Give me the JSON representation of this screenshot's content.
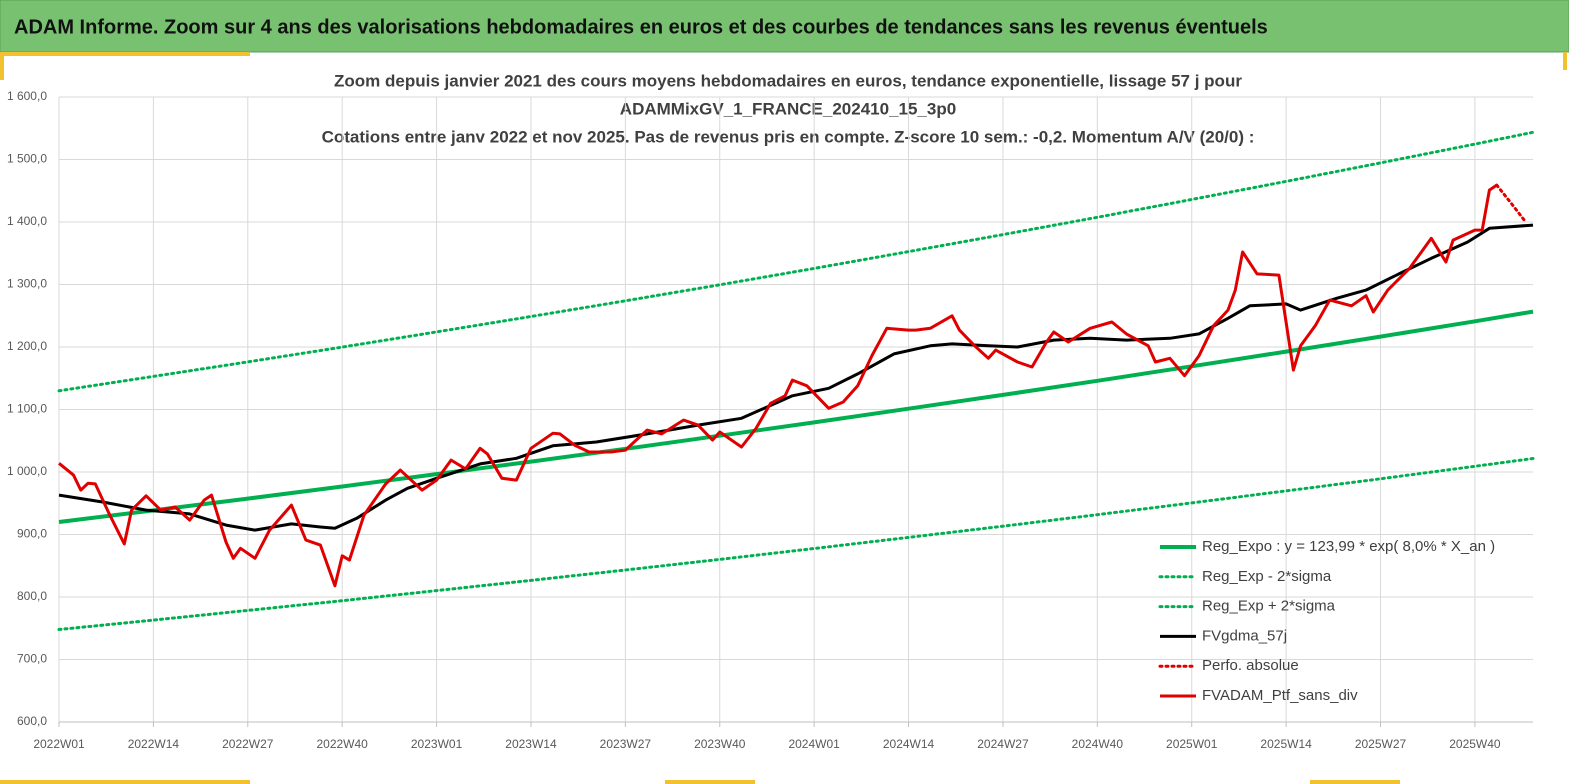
{
  "header": {
    "title": "ADAM Informe. Zoom sur 4 ans des valorisations hebdomadaires en euros et des courbes de tendances sans les revenus éventuels"
  },
  "chart_data": {
    "type": "line",
    "title": [
      "Zoom depuis janvier 2021 des cours moyens hebdomadaires  en euros, tendance exponentielle, lissage 57 j pour",
      "ADAMMixGV_1_FRANCE_202410_15_3p0",
      "Cotations entre janv 2022 et nov 2025. Pas de revenus pris en compte. Z-score 10 sem.: -0,2. Momentum A/V (20/0) :"
    ],
    "xlim": [
      0,
      203
    ],
    "xticks": [
      {
        "value": 0,
        "label": "2022W01"
      },
      {
        "value": 13,
        "label": "2022W14"
      },
      {
        "value": 26,
        "label": "2022W27"
      },
      {
        "value": 39,
        "label": "2022W40"
      },
      {
        "value": 52,
        "label": "2023W01"
      },
      {
        "value": 65,
        "label": "2023W14"
      },
      {
        "value": 78,
        "label": "2023W27"
      },
      {
        "value": 91,
        "label": "2023W40"
      },
      {
        "value": 104,
        "label": "2024W01"
      },
      {
        "value": 117,
        "label": "2024W14"
      },
      {
        "value": 130,
        "label": "2024W27"
      },
      {
        "value": 143,
        "label": "2024W40"
      },
      {
        "value": 156,
        "label": "2025W01"
      },
      {
        "value": 169,
        "label": "2025W14"
      },
      {
        "value": 182,
        "label": "2025W27"
      },
      {
        "value": 195,
        "label": "2025W40"
      }
    ],
    "ylim": [
      600,
      1600
    ],
    "yticks": [
      {
        "value": 600,
        "label": "600,0"
      },
      {
        "value": 700,
        "label": "700,0"
      },
      {
        "value": 800,
        "label": "800,0"
      },
      {
        "value": 900,
        "label": "900,0"
      },
      {
        "value": 1000,
        "label": "1 000,0"
      },
      {
        "value": 1100,
        "label": "1 100,0"
      },
      {
        "value": 1200,
        "label": "1 200,0"
      },
      {
        "value": 1300,
        "label": "1 300,0"
      },
      {
        "value": 1400,
        "label": "1 400,0"
      },
      {
        "value": 1500,
        "label": "1 500,0"
      },
      {
        "value": 1600,
        "label": "1 600,0"
      }
    ],
    "grid": true,
    "legend": "lower right",
    "series": [
      {
        "name": "Reg_Expo : y = 123,99 * exp( 8,0% *  X_an )",
        "color": "#00b050",
        "style": "solid",
        "width": 4,
        "x": [
          0,
          13,
          26,
          39,
          52,
          65,
          78,
          91,
          104,
          117,
          130,
          143,
          156,
          169,
          182,
          195,
          203
        ],
        "values": [
          920,
          938.6,
          957.5,
          976.8,
          996.6,
          1016.7,
          1037.2,
          1058.1,
          1079.4,
          1101.2,
          1123.4,
          1146,
          1169.1,
          1192.7,
          1216.7,
          1241.2,
          1256.6
        ]
      },
      {
        "name": "Reg_Exp - 2*sigma",
        "color": "#00b050",
        "style": "dotted",
        "width": 3,
        "x": [
          0,
          13,
          26,
          39,
          52,
          65,
          78,
          91,
          104,
          117,
          130,
          143,
          156,
          169,
          182,
          195,
          203
        ],
        "values": [
          748,
          763.1,
          778.5,
          794.1,
          810.2,
          826.6,
          843.2,
          860.2,
          877.6,
          895.3,
          913.3,
          931.7,
          950.5,
          969.7,
          989.2,
          1009.1,
          1021.6
        ]
      },
      {
        "name": "Reg_Exp + 2*sigma",
        "color": "#00b050",
        "style": "dotted",
        "width": 3,
        "x": [
          0,
          13,
          26,
          39,
          52,
          65,
          78,
          91,
          104,
          117,
          130,
          143,
          156,
          169,
          182,
          195,
          203
        ],
        "values": [
          1130,
          1152.9,
          1176.1,
          1199.8,
          1224.1,
          1248.8,
          1274,
          1299.6,
          1325.8,
          1352.6,
          1379.9,
          1407.6,
          1436,
          1465,
          1494.5,
          1524.6,
          1543.5
        ]
      },
      {
        "name": "FVgdma_57j",
        "color": "#000000",
        "style": "solid",
        "width": 3,
        "x": [
          0,
          6,
          12,
          18,
          23,
          27,
          32,
          36,
          38,
          41,
          45,
          48,
          52,
          58,
          63,
          68,
          74,
          81,
          88,
          94,
          101,
          106,
          110,
          115,
          120,
          123,
          128,
          132,
          137,
          142,
          147,
          153,
          157,
          161,
          164,
          169,
          171,
          176,
          180,
          184,
          189,
          194,
          197,
          203
        ],
        "values": [
          963,
          952,
          939,
          933,
          915,
          907,
          917,
          912,
          910,
          926,
          955,
          974,
          990,
          1013,
          1022,
          1042,
          1048,
          1061,
          1075,
          1086,
          1122,
          1134,
          1157,
          1189,
          1202,
          1205,
          1202,
          1200,
          1211,
          1214,
          1211,
          1214,
          1221,
          1246,
          1266,
          1269,
          1259,
          1278,
          1291,
          1314,
          1342,
          1368,
          1390,
          1395
        ]
      },
      {
        "name": "Perfo. absolue",
        "color": "#e00000",
        "style": "dotted",
        "width": 3,
        "x": [
          198,
          200,
          202
        ],
        "values": [
          1459,
          1430,
          1400
        ]
      },
      {
        "name": "FVADAM_Ptf_sans_div",
        "color": "#e00000",
        "style": "solid",
        "width": 3,
        "x": [
          0,
          2,
          3,
          4,
          5,
          7,
          9,
          10,
          12,
          14,
          16,
          18,
          20,
          21,
          23,
          24,
          25,
          27,
          29,
          32,
          34,
          36,
          38,
          39,
          40,
          42,
          45,
          47,
          50,
          52,
          54,
          56,
          58,
          59,
          61,
          63,
          65,
          68,
          69,
          71,
          73,
          76,
          78,
          81,
          83,
          86,
          88,
          90,
          91,
          94,
          96,
          98,
          100,
          101,
          103,
          106,
          108,
          110,
          112,
          114,
          117,
          118,
          120,
          123,
          124,
          126,
          128,
          129,
          132,
          134,
          136,
          137,
          139,
          142,
          145,
          147,
          150,
          151,
          153,
          155,
          157,
          159,
          161,
          162,
          163,
          165,
          168,
          170,
          171,
          173,
          175,
          178,
          180,
          181,
          183,
          186,
          189,
          191,
          192,
          195,
          196,
          197,
          198
        ],
        "values": [
          1014,
          995,
          971,
          982,
          981,
          931,
          885,
          939,
          962,
          939,
          944,
          923,
          955,
          963,
          888,
          862,
          878,
          862,
          907,
          947,
          891,
          883,
          818,
          866,
          859,
          931,
          981,
          1003,
          971,
          987,
          1019,
          1005,
          1038,
          1029,
          990,
          987,
          1038,
          1062,
          1061,
          1043,
          1032,
          1032,
          1035,
          1067,
          1061,
          1083,
          1075,
          1051,
          1064,
          1040,
          1070,
          1110,
          1122,
          1147,
          1138,
          1102,
          1112,
          1138,
          1187,
          1230,
          1227,
          1227,
          1230,
          1250,
          1227,
          1203,
          1182,
          1195,
          1176,
          1168,
          1208,
          1224,
          1208,
          1230,
          1240,
          1221,
          1202,
          1176,
          1182,
          1154,
          1186,
          1234,
          1259,
          1291,
          1352,
          1317,
          1315,
          1163,
          1202,
          1234,
          1275,
          1266,
          1282,
          1256,
          1291,
          1326,
          1374,
          1336,
          1371,
          1387,
          1387,
          1451,
          1459
        ]
      }
    ]
  }
}
